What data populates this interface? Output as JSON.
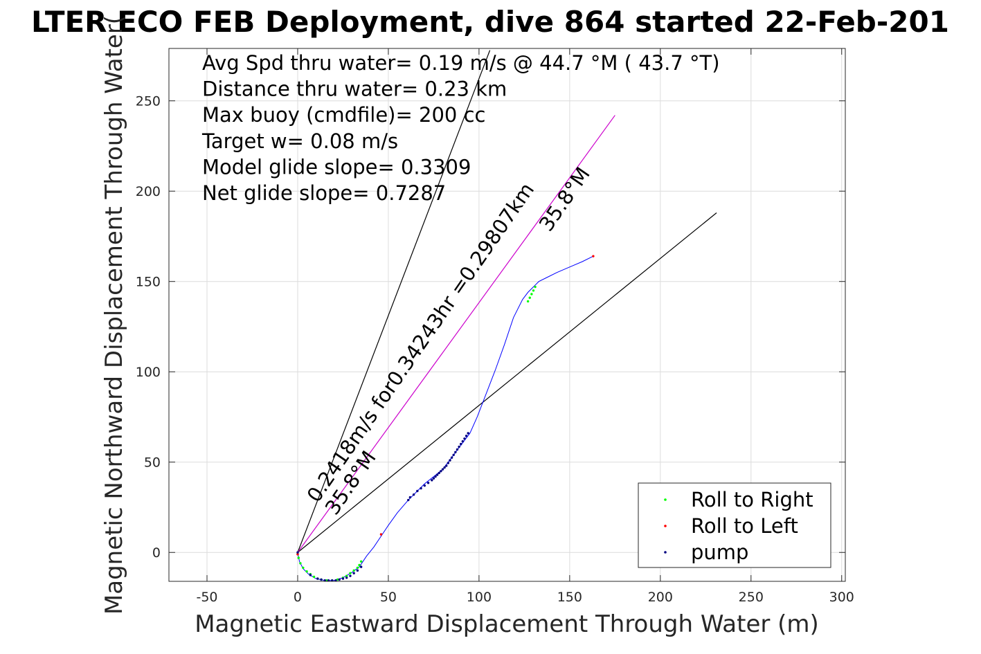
{
  "chart_data": {
    "type": "line",
    "title": "LTER ECO FEB Deployment, dive 864 started 22-Feb-201",
    "xlabel": "Magnetic Eastward Displacement Through Water (m)",
    "ylabel": "Magnetic Northward Displacement Through Water(",
    "xlim": [
      -71,
      302
    ],
    "ylim": [
      -16,
      279
    ],
    "xticks": [
      -50,
      0,
      50,
      100,
      150,
      200,
      250,
      300
    ],
    "yticks": [
      0,
      50,
      100,
      150,
      200,
      250
    ],
    "xtick_labels": [
      "-50",
      "0",
      "50",
      "100",
      "150",
      "200",
      "250",
      "300"
    ],
    "ytick_labels": [
      "0",
      "50",
      "100",
      "150",
      "200",
      "250"
    ],
    "grid": true,
    "info_lines": [
      "Avg Spd thru water=  0.19 m/s @  44.7 °M ( 43.7 °T)",
      "Distance thru water=  0.23 km",
      "Max buoy (cmdfile)= 200 cc",
      "Target w= 0.08 m/s",
      "Model glide slope= 0.3309",
      "Net glide slope= 0.7287"
    ],
    "annotations": [
      {
        "text": "0.2418m/s for0.34243hr =0.29807km",
        "x": 11,
        "y": 27,
        "rotation_deg": 55.4
      },
      {
        "text": "35.8°M",
        "x": 21,
        "y": 20,
        "rotation_deg": 55.4
      },
      {
        "text": "35.8°M",
        "x": 139,
        "y": 177,
        "rotation_deg": 55.4
      }
    ],
    "lines": [
      {
        "name": "",
        "color": "#000000",
        "x": [
          0,
          106
        ],
        "y": [
          0,
          278
        ]
      },
      {
        "name": "",
        "color": "#000000",
        "x": [
          0,
          231
        ],
        "y": [
          0,
          188
        ]
      },
      {
        "name": "",
        "color": "#cc00cc",
        "x": [
          0,
          175
        ],
        "y": [
          0,
          242
        ]
      }
    ],
    "track": {
      "color": "#0000ff",
      "x": [
        0,
        1,
        3,
        6,
        10,
        15,
        20,
        25,
        30,
        34,
        36,
        38,
        42,
        46,
        50,
        55,
        61,
        66,
        70,
        75,
        80,
        83,
        86,
        89,
        92,
        95,
        99,
        104,
        109,
        114,
        119,
        124,
        127,
        129,
        131,
        133,
        137,
        143,
        150,
        157,
        163
      ],
      "y": [
        0,
        -5,
        -9,
        -12,
        -14.5,
        -15.5,
        -15.5,
        -14,
        -11,
        -8,
        -5,
        -2,
        3,
        9,
        15,
        22,
        29,
        34,
        38,
        42,
        46,
        50,
        54,
        58,
        62,
        66,
        75,
        88,
        101,
        115,
        130,
        140,
        144,
        146,
        148,
        150,
        152,
        155,
        158,
        161,
        164
      ]
    },
    "series": [
      {
        "name": "Roll to Right",
        "color": "#00ff00",
        "x": [
          0,
          0.5,
          1.5,
          3,
          5,
          7,
          9,
          11,
          13,
          16,
          19,
          22,
          25,
          27,
          29,
          31,
          33,
          34,
          35,
          127,
          128,
          129,
          130,
          131
        ],
        "y": [
          -1,
          -3,
          -6,
          -8.5,
          -10.5,
          -12,
          -13.5,
          -14.5,
          -15,
          -15.5,
          -15.5,
          -15,
          -14,
          -13,
          -11.5,
          -10,
          -8.5,
          -7,
          -5,
          139,
          141,
          143,
          145,
          147
        ]
      },
      {
        "name": "Roll to Left",
        "color": "#ff0000",
        "x": [
          0,
          46,
          163
        ],
        "y": [
          -1,
          10,
          164
        ]
      },
      {
        "name": "pump",
        "color": "#000080",
        "x": [
          0,
          7,
          11,
          13,
          15,
          17,
          19,
          21,
          23,
          25,
          27,
          29,
          31,
          33,
          35,
          61,
          62,
          64,
          66,
          68,
          70,
          72,
          74,
          75,
          76,
          77,
          78,
          79,
          80,
          81,
          82,
          83,
          84,
          85,
          86,
          87,
          88,
          89,
          90,
          91,
          92,
          93,
          94
        ],
        "y": [
          0,
          -12.5,
          -14.5,
          -15,
          -15.5,
          -15.5,
          -15.5,
          -15.5,
          -15,
          -14.5,
          -14,
          -13,
          -11.5,
          -10,
          -8,
          29,
          30.5,
          32,
          34,
          35.5,
          37,
          38.5,
          40,
          41,
          42,
          43,
          44,
          45,
          46,
          47,
          48,
          49.5,
          51,
          52.5,
          54,
          55.5,
          57,
          58.5,
          60,
          61.5,
          63,
          64.5,
          66
        ]
      }
    ],
    "legend": {
      "position": "bottom-right",
      "entries": [
        "Roll to Right",
        "Roll to Left",
        "pump"
      ]
    }
  }
}
